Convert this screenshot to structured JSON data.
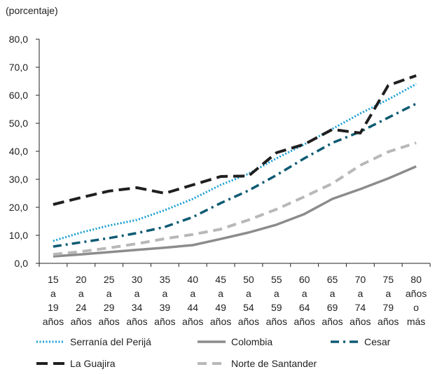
{
  "chart_data": {
    "type": "line",
    "ylabel": "(porcentaje)",
    "ylim": [
      0,
      80
    ],
    "yticks": [
      "0,0",
      "10,0",
      "20,0",
      "30,0",
      "40,0",
      "50,0",
      "60,0",
      "70,0",
      "80,0"
    ],
    "categories": [
      [
        "15",
        "a",
        "19",
        "años"
      ],
      [
        "20",
        "a",
        "24",
        "años"
      ],
      [
        "25",
        "a",
        "29",
        "años"
      ],
      [
        "30",
        "a",
        "34",
        "años"
      ],
      [
        "35",
        "a",
        "39",
        "años"
      ],
      [
        "40",
        "a",
        "44",
        "años"
      ],
      [
        "45",
        "a",
        "49",
        "años"
      ],
      [
        "50",
        "a",
        "54",
        "años"
      ],
      [
        "55",
        "a",
        "59",
        "años"
      ],
      [
        "60",
        "a",
        "64",
        "años"
      ],
      [
        "65",
        "a",
        "69",
        "años"
      ],
      [
        "70",
        "a",
        "74",
        "años"
      ],
      [
        "75",
        "a",
        "79",
        "años"
      ],
      [
        "80",
        "años",
        "o",
        "más"
      ]
    ],
    "series": [
      {
        "name": "Serranía del Perijá",
        "color": "#1a9fd4",
        "style": "dotted",
        "values": [
          8.0,
          11.0,
          13.5,
          15.5,
          19.0,
          23.0,
          28.0,
          32.0,
          37.5,
          42.5,
          48.0,
          53.5,
          58.5,
          64.0
        ]
      },
      {
        "name": "Colombia",
        "color": "#8c8c8c",
        "style": "solid",
        "values": [
          2.5,
          3.2,
          4.0,
          4.8,
          5.6,
          6.5,
          8.7,
          11.0,
          13.8,
          17.6,
          23.0,
          26.5,
          30.3,
          34.6
        ]
      },
      {
        "name": "Cesar",
        "color": "#0e5b73",
        "style": "dashdot",
        "values": [
          6.0,
          7.5,
          9.0,
          10.8,
          13.0,
          16.5,
          21.5,
          26.0,
          31.5,
          37.5,
          43.0,
          47.0,
          52.0,
          57.0
        ]
      },
      {
        "name": "La Guajira",
        "color": "#1f1f1f",
        "style": "dashed",
        "values": [
          21.0,
          23.5,
          25.8,
          27.0,
          25.0,
          28.0,
          31.0,
          31.2,
          39.5,
          42.5,
          47.8,
          46.5,
          63.5,
          67.0
        ]
      },
      {
        "name": "Norte de Santander",
        "color": "#b8b8b8",
        "style": "dashed-light",
        "values": [
          3.2,
          4.2,
          5.5,
          7.0,
          8.8,
          10.3,
          12.2,
          15.5,
          19.3,
          23.8,
          28.5,
          35.0,
          39.8,
          43.0
        ]
      }
    ],
    "legend_placement": "bottom",
    "grid": false
  }
}
